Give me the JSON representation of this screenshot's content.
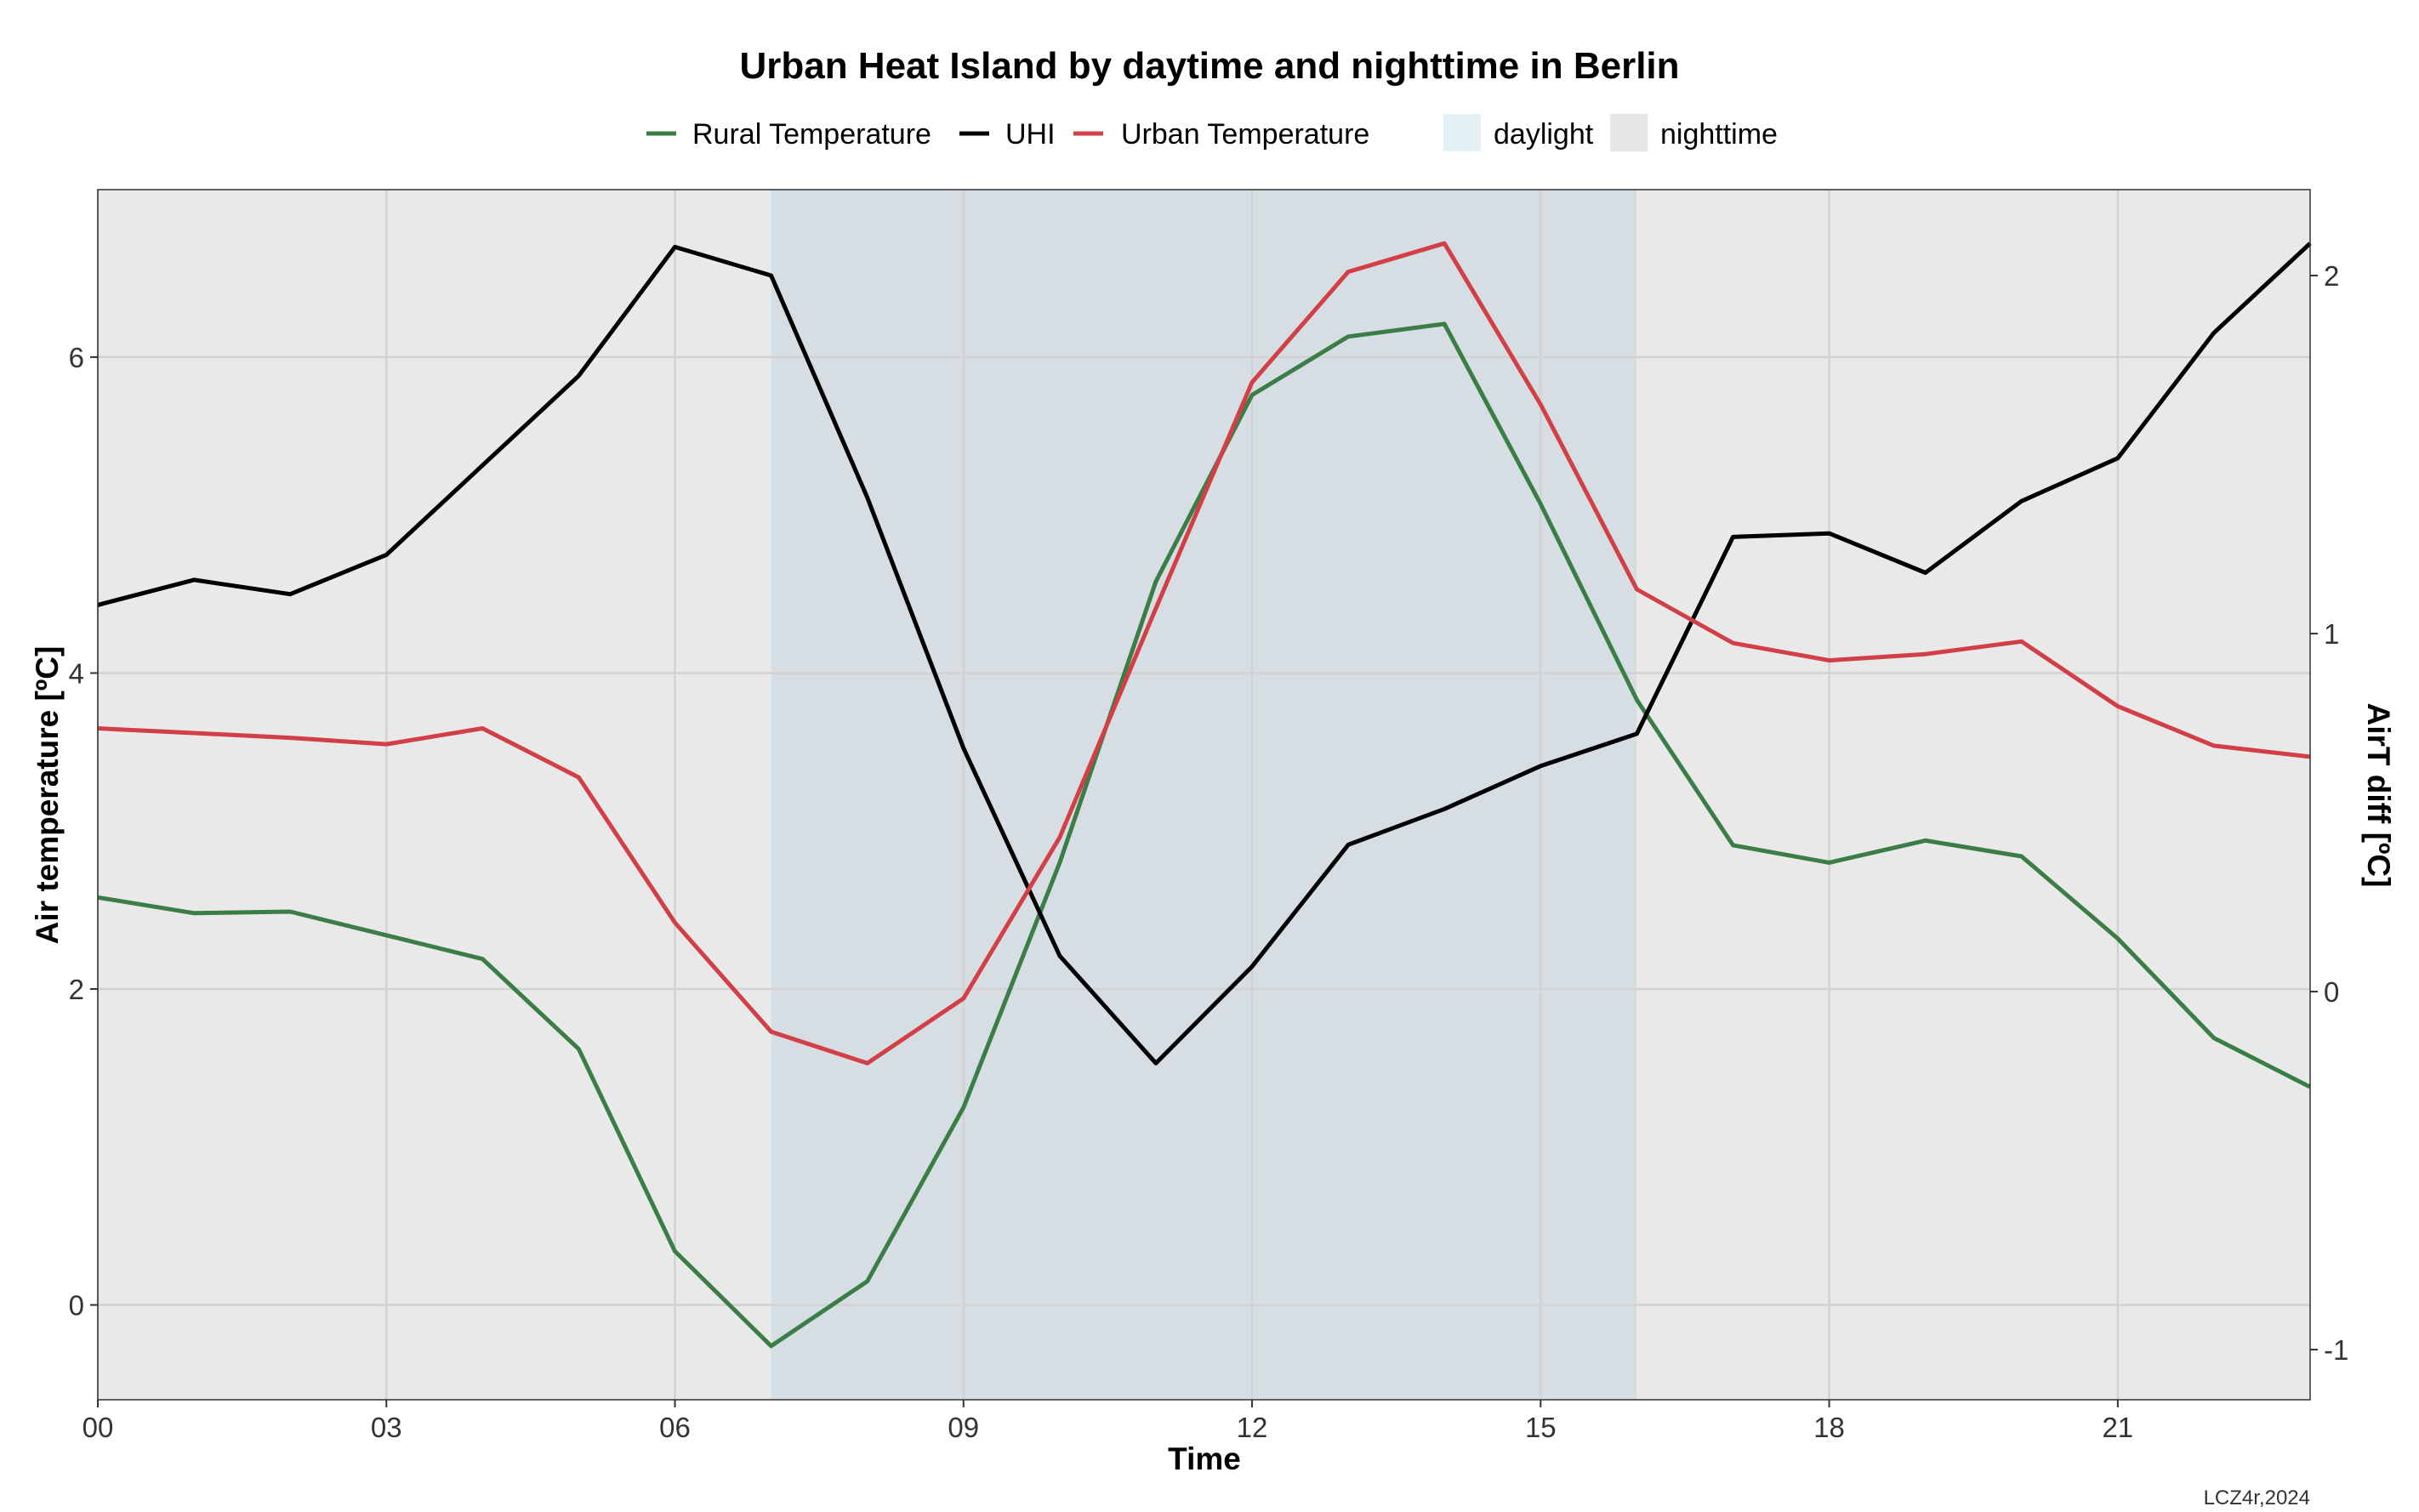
{
  "chart_data": {
    "type": "line",
    "title": "Urban Heat Island by daytime and nighttime in Berlin",
    "xlabel": "Time",
    "ylabel": "Air temperature [ºC]",
    "y2label": "AirT diff [ºC]",
    "caption": "LCZ4r,2024",
    "x": [
      0,
      1,
      2,
      3,
      4,
      5,
      6,
      7,
      8,
      9,
      10,
      11,
      12,
      13,
      14,
      15,
      16,
      17,
      18,
      19,
      20,
      21,
      22,
      23
    ],
    "x_ticks": [
      0,
      3,
      6,
      9,
      12,
      15,
      18,
      21
    ],
    "x_tick_labels": [
      "00",
      "03",
      "06",
      "09",
      "12",
      "15",
      "18",
      "21"
    ],
    "xlim": [
      0,
      23
    ],
    "ylim": [
      -0.6,
      7.06
    ],
    "y_ticks": [
      0,
      2,
      4,
      6
    ],
    "y_tick_labels": [
      "0",
      "2",
      "4",
      "6"
    ],
    "y2lim": [
      -1.14,
      2.24
    ],
    "y2_ticks": [
      -1,
      0,
      1,
      2
    ],
    "y2_tick_labels": [
      "-1",
      "0",
      "1",
      "2"
    ],
    "grid": true,
    "legend_position": "top",
    "series": [
      {
        "name": "Rural Temperature",
        "axis": "left",
        "color": "#3b7d46",
        "values": [
          2.58,
          2.48,
          2.49,
          2.34,
          2.19,
          1.62,
          0.34,
          -0.26,
          0.15,
          1.25,
          2.8,
          4.58,
          5.76,
          6.13,
          6.21,
          5.07,
          3.83,
          2.91,
          2.8,
          2.94,
          2.84,
          2.32,
          1.69,
          1.38
        ]
      },
      {
        "name": "UHI",
        "axis": "right",
        "color": "#000000",
        "values": [
          1.08,
          1.15,
          1.11,
          1.22,
          1.47,
          1.72,
          2.08,
          2.0,
          1.38,
          0.68,
          0.1,
          -0.2,
          0.07,
          0.41,
          0.51,
          0.63,
          0.72,
          1.27,
          1.28,
          1.17,
          1.37,
          1.49,
          1.84,
          2.09
        ]
      },
      {
        "name": "Urban Temperature",
        "axis": "left",
        "color": "#d23f46",
        "values": [
          3.65,
          3.62,
          3.59,
          3.55,
          3.65,
          3.34,
          2.42,
          1.73,
          1.53,
          1.94,
          2.96,
          4.41,
          5.84,
          6.54,
          6.72,
          5.7,
          4.53,
          4.19,
          4.08,
          4.12,
          4.2,
          3.79,
          3.54,
          3.47
        ]
      }
    ],
    "shading": [
      {
        "name": "nighttime",
        "from": 0,
        "to": 7,
        "color": "#e9e9e9"
      },
      {
        "name": "daylight",
        "from": 7,
        "to": 16,
        "color": "#d6dee3"
      },
      {
        "name": "nighttime",
        "from": 16,
        "to": 23,
        "color": "#e9e9e9"
      }
    ],
    "shading_legend": [
      {
        "name": "daylight",
        "color": "#e3f0f4"
      },
      {
        "name": "nighttime",
        "color": "#e6e6e6"
      }
    ]
  }
}
